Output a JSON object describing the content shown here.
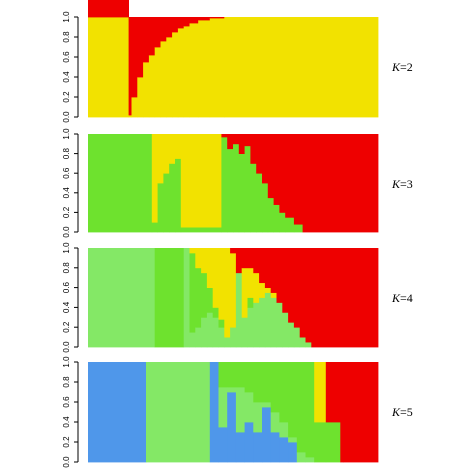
{
  "colors": {
    "red": "#ee0000",
    "yellow": "#f2e200",
    "green": "#6ee22e",
    "light_green": "#84e866",
    "blue": "#4f97ea"
  },
  "chart_data": [
    {
      "type": "bar",
      "stacked": true,
      "title": "",
      "xlabel": "",
      "ylabel": "",
      "ylim": [
        0,
        1
      ],
      "yticks": [
        "0.0",
        "0.2",
        "0.4",
        "0.6",
        "0.8",
        "1.0"
      ],
      "panel_label": {
        "italic": "K",
        "rest": "=2"
      },
      "series": [
        {
          "color": "yellow"
        },
        {
          "color": "red"
        }
      ],
      "x": [
        0,
        0.14,
        0.15,
        0.17,
        0.19,
        0.21,
        0.23,
        0.25,
        0.27,
        0.29,
        0.31,
        0.33,
        0.35,
        0.38,
        0.42,
        0.47,
        1.0
      ],
      "values": [
        [
          1.0,
          1.0
        ],
        [
          0.02,
          0.98
        ],
        [
          0.2,
          0.8
        ],
        [
          0.4,
          0.6
        ],
        [
          0.55,
          0.45
        ],
        [
          0.62,
          0.38
        ],
        [
          0.7,
          0.3
        ],
        [
          0.76,
          0.24
        ],
        [
          0.8,
          0.2
        ],
        [
          0.85,
          0.15
        ],
        [
          0.89,
          0.11
        ],
        [
          0.91,
          0.09
        ],
        [
          0.94,
          0.06
        ],
        [
          0.97,
          0.03
        ],
        [
          0.99,
          0.01
        ],
        [
          1.0,
          0.0
        ]
      ]
    },
    {
      "type": "bar",
      "stacked": true,
      "title": "",
      "xlabel": "",
      "ylabel": "",
      "ylim": [
        0,
        1
      ],
      "yticks": [
        "0.0",
        "0.2",
        "0.4",
        "0.6",
        "0.8",
        "1.0"
      ],
      "panel_label": {
        "italic": "K",
        "rest": "=3"
      },
      "series": [
        {
          "color": "green"
        },
        {
          "color": "yellow"
        },
        {
          "color": "red"
        }
      ],
      "x": [
        0,
        0.22,
        0.24,
        0.26,
        0.28,
        0.3,
        0.32,
        0.46,
        0.48,
        0.5,
        0.52,
        0.54,
        0.56,
        0.58,
        0.6,
        0.62,
        0.64,
        0.66,
        0.68,
        0.71,
        0.74,
        1.0
      ],
      "values": [
        [
          1.0,
          0.0,
          0.0
        ],
        [
          0.1,
          0.9,
          0.0
        ],
        [
          0.5,
          0.5,
          0.0
        ],
        [
          0.6,
          0.4,
          0.0
        ],
        [
          0.7,
          0.3,
          0.0
        ],
        [
          0.75,
          0.25,
          0.0
        ],
        [
          0.05,
          0.95,
          0.0
        ],
        [
          0.97,
          0.0,
          0.03
        ],
        [
          0.85,
          0.0,
          0.15
        ],
        [
          0.9,
          0.0,
          0.1
        ],
        [
          0.8,
          0.0,
          0.2
        ],
        [
          0.88,
          0.0,
          0.12
        ],
        [
          0.7,
          0.0,
          0.3
        ],
        [
          0.6,
          0.0,
          0.4
        ],
        [
          0.5,
          0.0,
          0.5
        ],
        [
          0.35,
          0.0,
          0.65
        ],
        [
          0.28,
          0.0,
          0.72
        ],
        [
          0.2,
          0.0,
          0.8
        ],
        [
          0.15,
          0.0,
          0.85
        ],
        [
          0.08,
          0.0,
          0.92
        ],
        [
          0.0,
          0.0,
          1.0
        ]
      ]
    },
    {
      "type": "bar",
      "stacked": true,
      "title": "",
      "xlabel": "",
      "ylabel": "",
      "ylim": [
        0,
        1
      ],
      "yticks": [
        "0.0",
        "0.2",
        "0.4",
        "0.6",
        "0.8",
        "1.0"
      ],
      "panel_label": {
        "italic": "K",
        "rest": "=4"
      },
      "series": [
        {
          "color": "light_green"
        },
        {
          "color": "green"
        },
        {
          "color": "yellow"
        },
        {
          "color": "red"
        }
      ],
      "x": [
        0,
        0.23,
        0.33,
        0.35,
        0.37,
        0.39,
        0.41,
        0.43,
        0.45,
        0.47,
        0.49,
        0.51,
        0.53,
        0.55,
        0.57,
        0.59,
        0.61,
        0.63,
        0.65,
        0.67,
        0.69,
        0.71,
        0.73,
        0.75,
        0.77,
        1.0
      ],
      "values": [
        [
          1.0,
          0.0,
          0.0,
          0.0
        ],
        [
          0.0,
          1.0,
          0.0,
          0.0
        ],
        [
          1.0,
          0.0,
          0.0,
          0.0
        ],
        [
          0.15,
          0.8,
          0.05,
          0.0
        ],
        [
          0.2,
          0.6,
          0.2,
          0.0
        ],
        [
          0.3,
          0.45,
          0.25,
          0.0
        ],
        [
          0.35,
          0.25,
          0.4,
          0.0
        ],
        [
          0.3,
          0.1,
          0.6,
          0.0
        ],
        [
          0.2,
          0.08,
          0.72,
          0.0
        ],
        [
          0.1,
          0.0,
          0.9,
          0.0
        ],
        [
          0.2,
          0.0,
          0.75,
          0.05
        ],
        [
          0.75,
          0.0,
          0.0,
          0.25
        ],
        [
          0.3,
          0.0,
          0.5,
          0.2
        ],
        [
          0.4,
          0.1,
          0.3,
          0.2
        ],
        [
          0.45,
          0.0,
          0.3,
          0.25
        ],
        [
          0.5,
          0.0,
          0.15,
          0.35
        ],
        [
          0.55,
          0.0,
          0.05,
          0.4
        ],
        [
          0.5,
          0.0,
          0.05,
          0.45
        ],
        [
          0.45,
          0.0,
          0.0,
          0.55
        ],
        [
          0.35,
          0.0,
          0.0,
          0.65
        ],
        [
          0.25,
          0.0,
          0.0,
          0.75
        ],
        [
          0.2,
          0.0,
          0.0,
          0.8
        ],
        [
          0.1,
          0.0,
          0.0,
          0.9
        ],
        [
          0.05,
          0.0,
          0.0,
          0.95
        ],
        [
          0.0,
          0.0,
          0.0,
          1.0
        ]
      ]
    },
    {
      "type": "bar",
      "stacked": true,
      "title": "",
      "xlabel": "",
      "ylabel": "",
      "ylim": [
        0,
        1
      ],
      "yticks": [
        "0.0",
        "0.2",
        "0.4",
        "0.6",
        "0.8",
        "1.0"
      ],
      "panel_label": {
        "italic": "K",
        "rest": "=5"
      },
      "series": [
        {
          "color": "blue"
        },
        {
          "color": "light_green"
        },
        {
          "color": "green"
        },
        {
          "color": "yellow"
        },
        {
          "color": "red"
        }
      ],
      "x": [
        0,
        0.2,
        0.42,
        0.45,
        0.48,
        0.51,
        0.54,
        0.57,
        0.6,
        0.63,
        0.66,
        0.69,
        0.72,
        0.75,
        0.78,
        0.82,
        0.87,
        0.88,
        1.0
      ],
      "values": [
        [
          1.0,
          0.0,
          0.0,
          0.0,
          0.0
        ],
        [
          0.0,
          1.0,
          0.0,
          0.0,
          0.0
        ],
        [
          1.0,
          0.0,
          0.0,
          0.0,
          0.0
        ],
        [
          0.35,
          0.4,
          0.25,
          0.0,
          0.0
        ],
        [
          0.7,
          0.05,
          0.25,
          0.0,
          0.0
        ],
        [
          0.3,
          0.45,
          0.25,
          0.0,
          0.0
        ],
        [
          0.4,
          0.3,
          0.3,
          0.0,
          0.0
        ],
        [
          0.3,
          0.3,
          0.4,
          0.0,
          0.0
        ],
        [
          0.55,
          0.05,
          0.4,
          0.0,
          0.0
        ],
        [
          0.3,
          0.2,
          0.5,
          0.0,
          0.0
        ],
        [
          0.25,
          0.15,
          0.6,
          0.0,
          0.0
        ],
        [
          0.2,
          0.05,
          0.75,
          0.0,
          0.0
        ],
        [
          0.0,
          0.1,
          0.9,
          0.0,
          0.0
        ],
        [
          0.0,
          0.05,
          0.95,
          0.0,
          0.0
        ],
        [
          0.0,
          0.0,
          0.4,
          0.6,
          0.0
        ],
        [
          0.0,
          0.0,
          0.4,
          0.0,
          0.6
        ],
        [
          0.0,
          0.0,
          0.0,
          0.0,
          1.0
        ],
        [
          0.0,
          0.0,
          0.0,
          0.0,
          1.0
        ]
      ]
    }
  ]
}
